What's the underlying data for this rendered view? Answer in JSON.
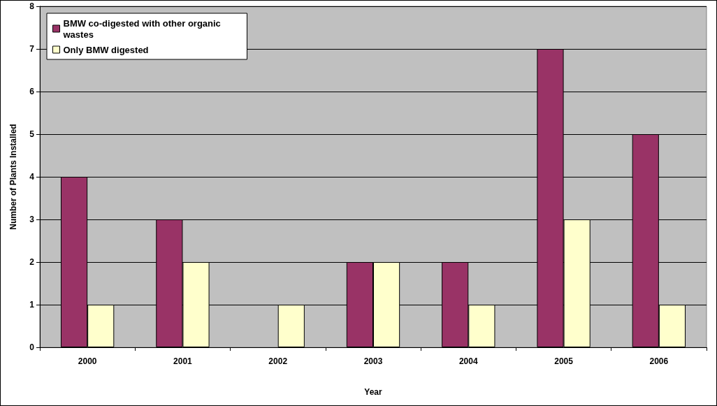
{
  "chart_data": {
    "type": "bar",
    "xlabel": "Year",
    "ylabel": "Number of Plants Installed",
    "categories": [
      "2000",
      "2001",
      "2002",
      "2003",
      "2004",
      "2005",
      "2006"
    ],
    "series": [
      {
        "name": "BMW co-digested with other organic wastes",
        "color": "#993366",
        "values": [
          4,
          3,
          0,
          2,
          2,
          7,
          5
        ]
      },
      {
        "name": "Only BMW digested",
        "color": "#ffffcc",
        "values": [
          1,
          2,
          1,
          2,
          1,
          3,
          1
        ]
      }
    ],
    "ylim": [
      0,
      8
    ],
    "yticks": [
      0,
      1,
      2,
      3,
      4,
      5,
      6,
      7,
      8
    ],
    "grid": "y",
    "legend": "top left"
  }
}
